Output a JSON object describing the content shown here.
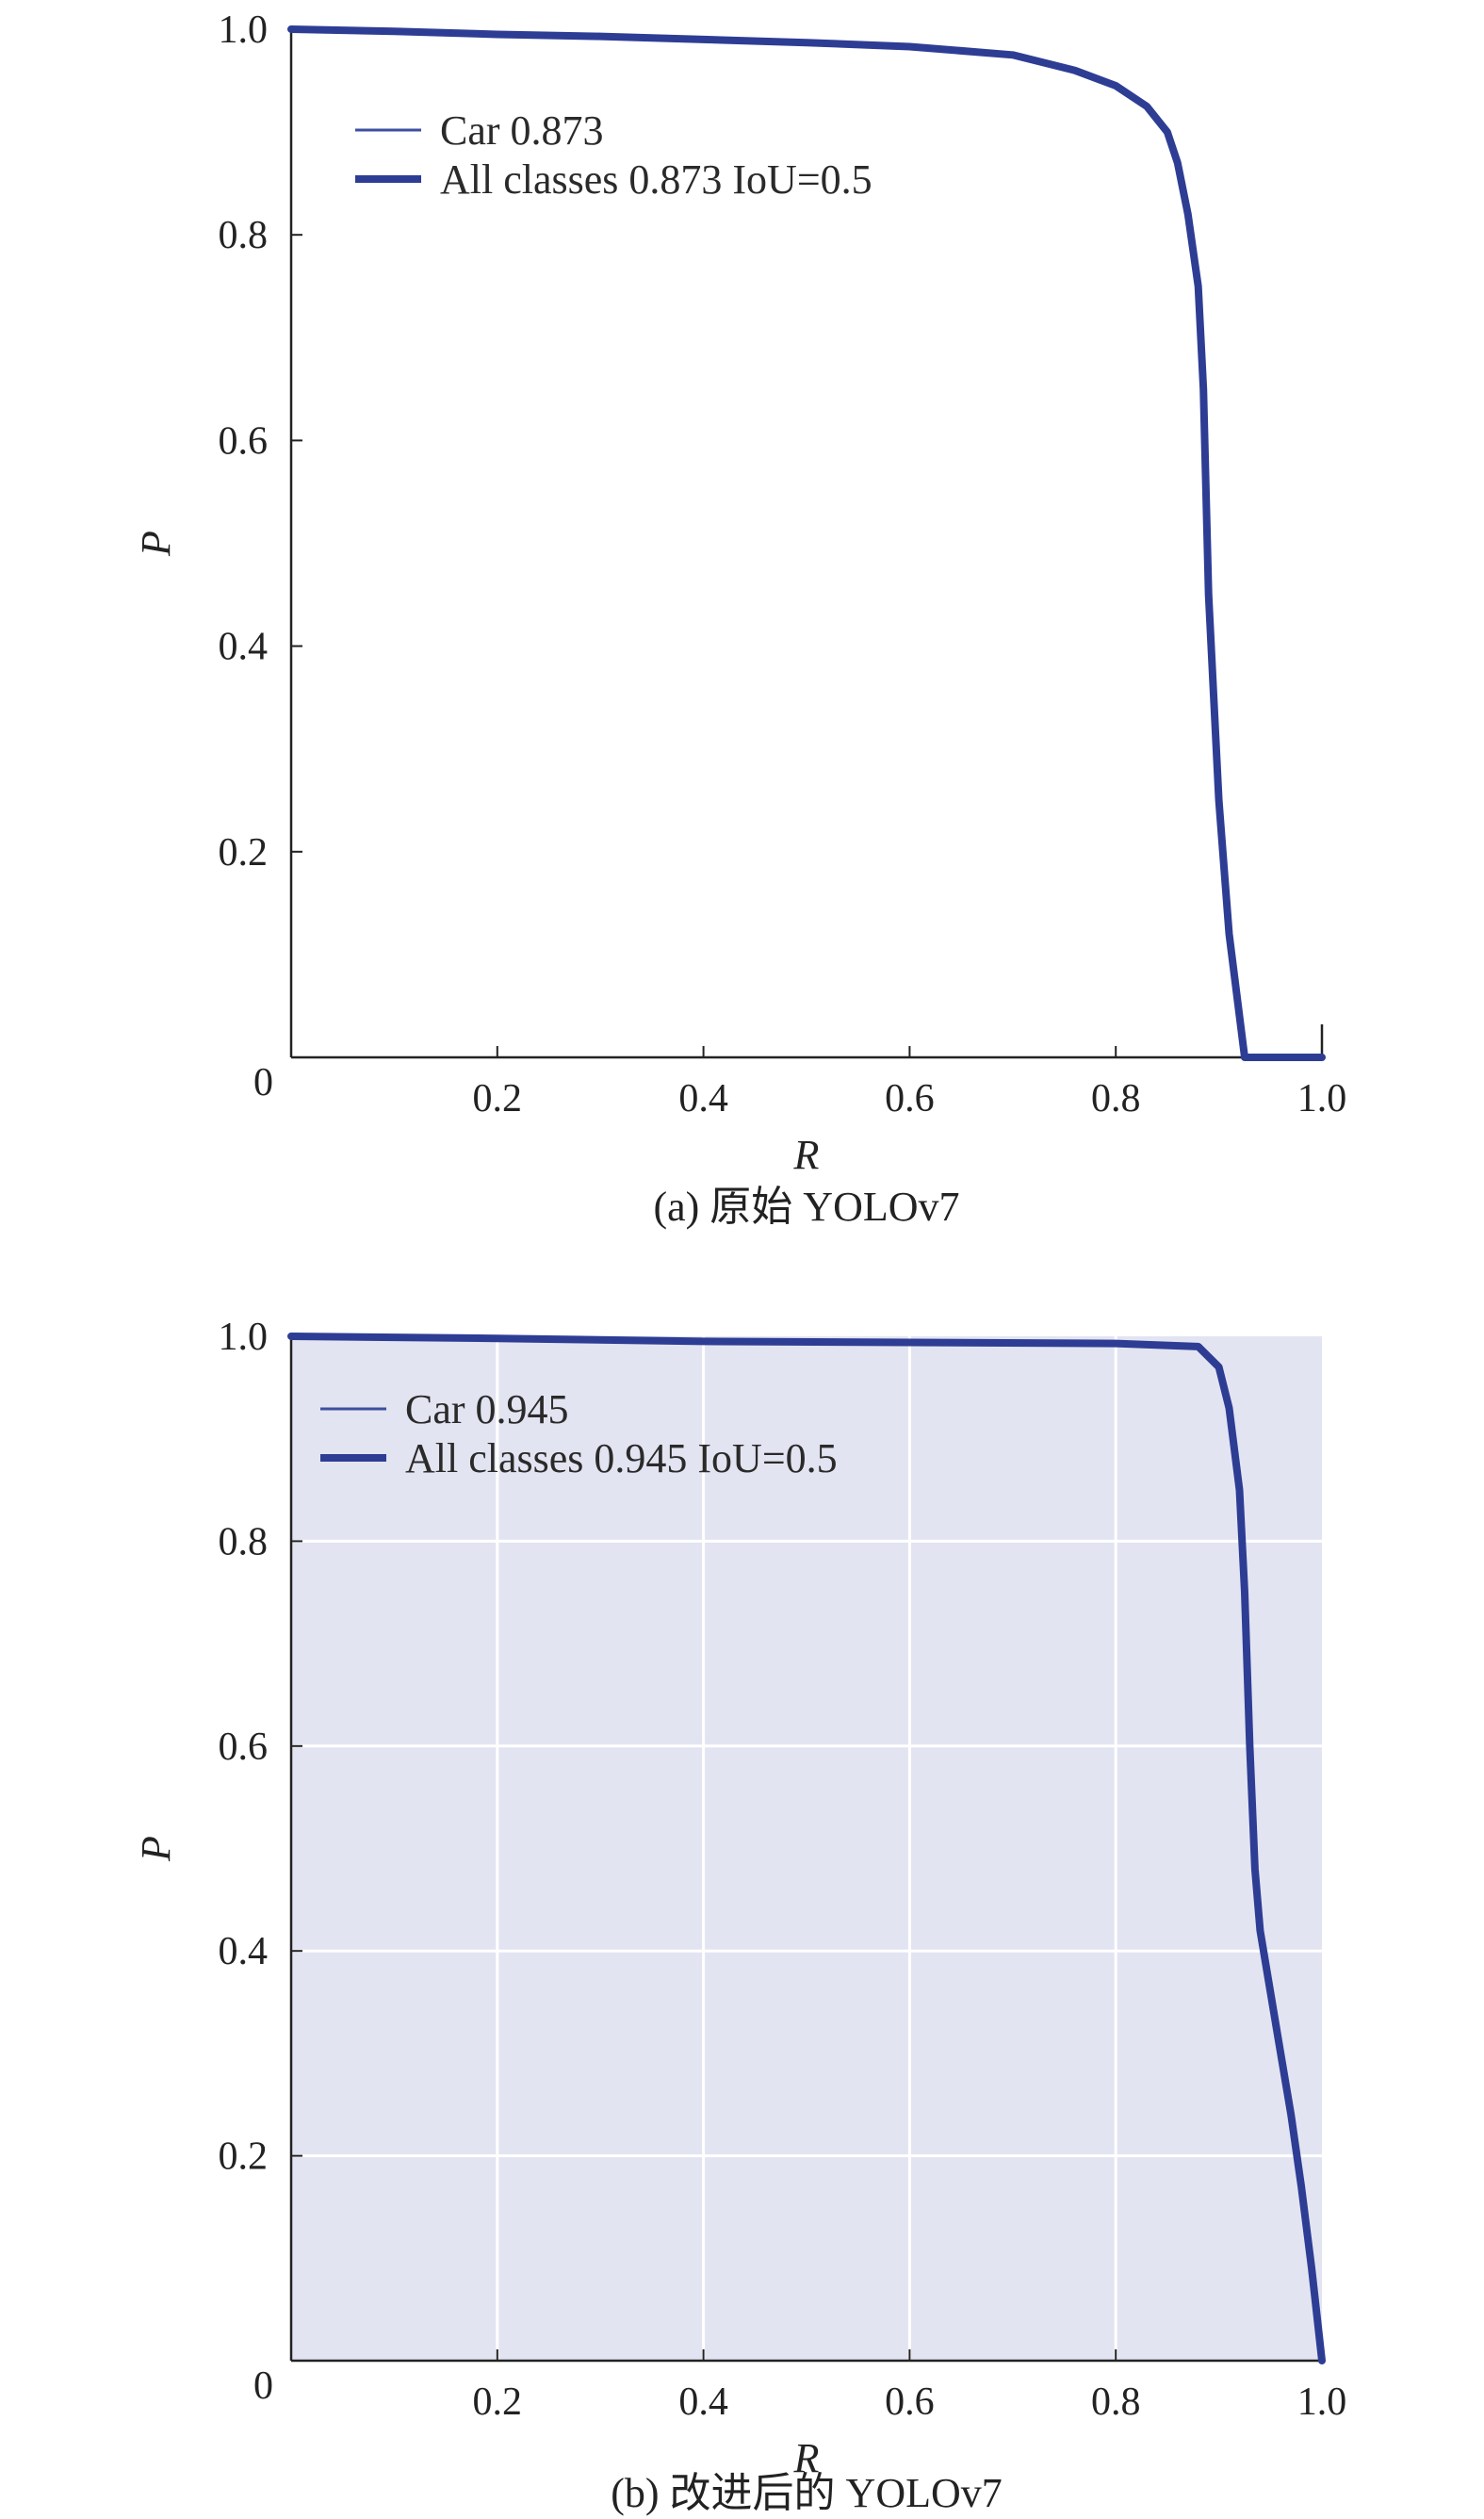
{
  "chart_data": [
    {
      "type": "line",
      "caption": "(a) 原始 YOLOv7",
      "xlabel": "R",
      "ylabel": "P",
      "xlim": [
        0,
        1.0
      ],
      "ylim": [
        0,
        1.0
      ],
      "xticks": [
        "0.2",
        "0.4",
        "0.6",
        "0.8",
        "1.0"
      ],
      "yticks": [
        "0.2",
        "0.4",
        "0.6",
        "0.8",
        "1.0"
      ],
      "origin_label": "0",
      "grid": false,
      "background": "#ffffff",
      "legend_position": "top-left",
      "legend": [
        "Car 0.873",
        "All classes 0.873 IoU=0.5"
      ],
      "series": [
        {
          "name": "Car 0.873",
          "color": "#3d4fa0",
          "x": [
            0.0,
            0.1,
            0.2,
            0.3,
            0.4,
            0.5,
            0.6,
            0.7,
            0.76,
            0.8,
            0.83,
            0.85,
            0.86,
            0.87,
            0.88,
            0.885,
            0.89,
            0.9,
            0.91,
            0.92,
            0.925,
            0.93,
            0.95,
            1.0
          ],
          "y": [
            1.0,
            0.998,
            0.995,
            0.993,
            0.99,
            0.987,
            0.983,
            0.975,
            0.96,
            0.945,
            0.925,
            0.9,
            0.87,
            0.82,
            0.75,
            0.65,
            0.45,
            0.25,
            0.12,
            0.04,
            0.0,
            0.0,
            0.0,
            0.0
          ]
        },
        {
          "name": "All classes 0.873 IoU=0.5",
          "color": "#2e3d94",
          "x": [
            0.0,
            0.1,
            0.2,
            0.3,
            0.4,
            0.5,
            0.6,
            0.7,
            0.76,
            0.8,
            0.83,
            0.85,
            0.86,
            0.87,
            0.88,
            0.885,
            0.89,
            0.9,
            0.91,
            0.92,
            0.925,
            0.93,
            0.95,
            1.0
          ],
          "y": [
            1.0,
            0.998,
            0.995,
            0.993,
            0.99,
            0.987,
            0.983,
            0.975,
            0.96,
            0.945,
            0.925,
            0.9,
            0.87,
            0.82,
            0.75,
            0.65,
            0.45,
            0.25,
            0.12,
            0.04,
            0.0,
            0.0,
            0.0,
            0.0
          ]
        }
      ]
    },
    {
      "type": "line",
      "caption": "(b) 改进后的 YOLOv7",
      "xlabel": "R",
      "ylabel": "P",
      "xlim": [
        0,
        1.0
      ],
      "ylim": [
        0,
        1.0
      ],
      "xticks": [
        "0.2",
        "0.4",
        "0.6",
        "0.8",
        "1.0"
      ],
      "yticks": [
        "0.2",
        "0.4",
        "0.6",
        "0.8",
        "1.0"
      ],
      "origin_label": "0",
      "grid": true,
      "background": "#e3e4f1",
      "legend_position": "top-left",
      "legend": [
        "Car 0.945",
        "All classes 0.945 IoU=0.5"
      ],
      "series": [
        {
          "name": "Car 0.945",
          "color": "#3d4fa0",
          "x": [
            0.0,
            0.2,
            0.4,
            0.6,
            0.8,
            0.88,
            0.9,
            0.91,
            0.92,
            0.925,
            0.93,
            0.935,
            0.94,
            0.95,
            0.96,
            0.97,
            0.98,
            0.99,
            1.0
          ],
          "y": [
            1.0,
            0.998,
            0.995,
            0.994,
            0.993,
            0.99,
            0.97,
            0.93,
            0.85,
            0.75,
            0.6,
            0.48,
            0.42,
            0.36,
            0.3,
            0.24,
            0.17,
            0.09,
            0.0
          ]
        },
        {
          "name": "All classes 0.945 IoU=0.5",
          "color": "#2e3d94",
          "x": [
            0.0,
            0.2,
            0.4,
            0.6,
            0.8,
            0.88,
            0.9,
            0.91,
            0.92,
            0.925,
            0.93,
            0.935,
            0.94,
            0.95,
            0.96,
            0.97,
            0.98,
            0.99,
            1.0
          ],
          "y": [
            1.0,
            0.998,
            0.995,
            0.994,
            0.993,
            0.99,
            0.97,
            0.93,
            0.85,
            0.75,
            0.6,
            0.48,
            0.42,
            0.36,
            0.3,
            0.24,
            0.17,
            0.09,
            0.0
          ]
        }
      ]
    }
  ]
}
